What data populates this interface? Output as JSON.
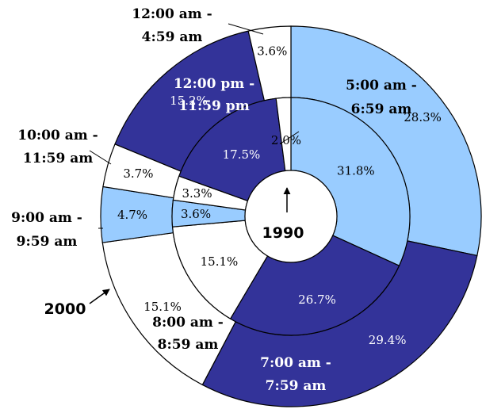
{
  "chart_data": {
    "type": "donut",
    "categories": [
      "5:00 am - 6:59 am",
      "7:00 am - 7:59 am",
      "8:00 am - 8:59 am",
      "9:00 am - 9:59 am",
      "10:00 am - 11:59 am",
      "12:00 pm - 11:59 pm",
      "12:00 am - 4:59 am"
    ],
    "series": [
      {
        "name": "1990",
        "values": [
          31.8,
          26.7,
          15.1,
          3.6,
          3.3,
          17.5,
          2.0
        ],
        "value_labels": [
          "31.8%",
          "26.7%",
          "15.1%",
          "3.6%",
          "3.3%",
          "17.5%",
          "2.0%"
        ]
      },
      {
        "name": "2000",
        "values": [
          28.3,
          29.4,
          15.1,
          4.7,
          3.7,
          15.2,
          3.6
        ],
        "value_labels": [
          "28.3%",
          "29.4%",
          "15.1%",
          "4.7%",
          "3.7%",
          "15.2%",
          "3.6%"
        ]
      }
    ],
    "category_labels": [
      [
        "5:00 am -",
        "6:59 am"
      ],
      [
        "7:00 am -",
        "7:59 am"
      ],
      [
        "8:00 am -",
        "8:59 am"
      ],
      [
        "9:00 am -",
        "9:59 am"
      ],
      [
        "10:00 am -",
        "11:59 am"
      ],
      [
        "12:00 pm -",
        "11:59 pm"
      ],
      [
        "12:00 am -",
        "4:59 am"
      ]
    ],
    "slice_colors": [
      "#99ccff",
      "#333399",
      "#ffffff",
      "#99ccff",
      "#ffffff",
      "#333399",
      "#ffffff"
    ],
    "inner_ring_label": "1990",
    "outer_ring_label": "2000",
    "start_angle": "12 o'clock",
    "direction": "clockwise"
  }
}
